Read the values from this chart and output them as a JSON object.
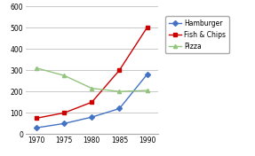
{
  "x": [
    1970,
    1975,
    1980,
    1985,
    1990
  ],
  "hamburger": [
    30,
    50,
    80,
    120,
    280
  ],
  "fish_chips": [
    75,
    100,
    150,
    300,
    500
  ],
  "pizza": [
    310,
    275,
    215,
    200,
    205
  ],
  "hamburger_color": "#4472c4",
  "fish_chips_color": "#cc0000",
  "pizza_color": "#93c47d",
  "ylim": [
    0,
    600
  ],
  "yticks": [
    0,
    100,
    200,
    300,
    400,
    500,
    600
  ],
  "xticks": [
    1970,
    1975,
    1980,
    1985,
    1990
  ],
  "legend_labels": [
    "Hamburger",
    "Fish & Chips",
    "Pizza"
  ],
  "background_color": "#ffffff",
  "grid_color": "#c0c0c0"
}
